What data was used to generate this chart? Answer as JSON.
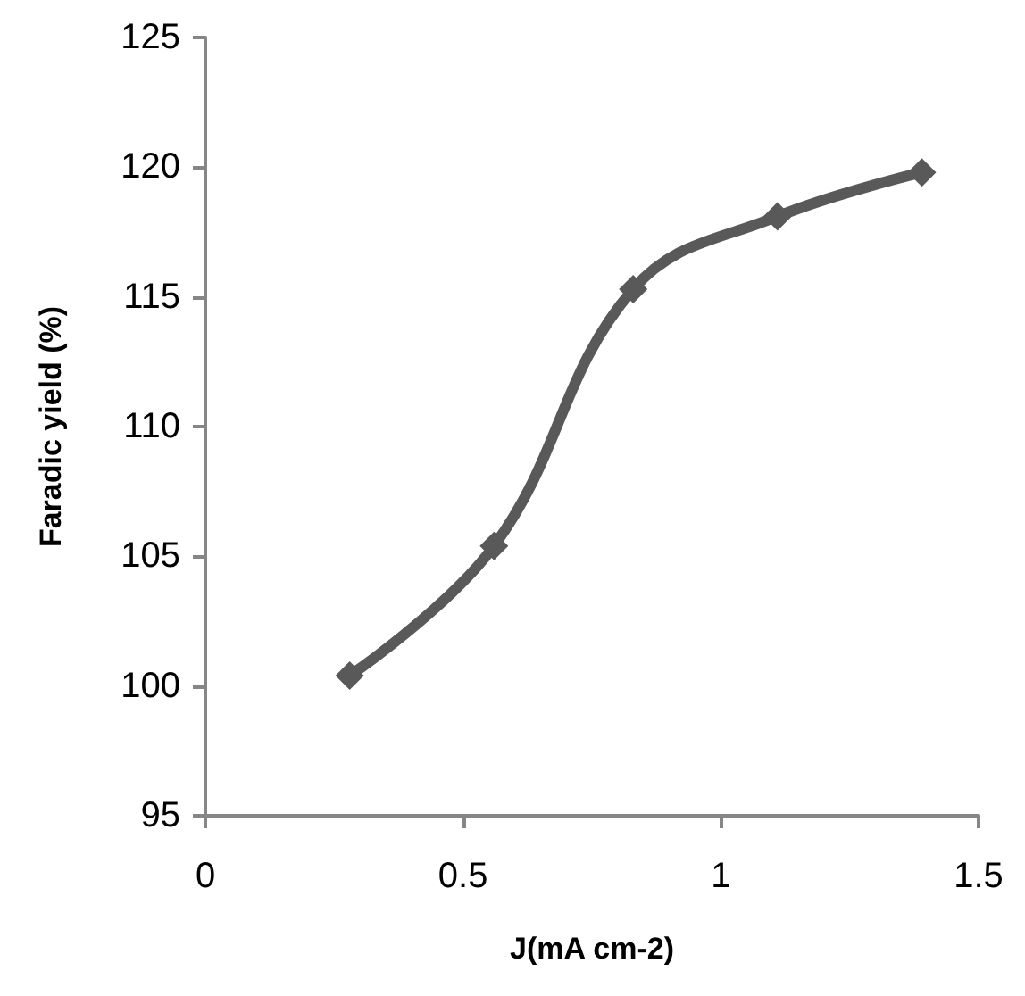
{
  "chart_data": {
    "type": "line",
    "xlabel": "J(mA cm-2)",
    "ylabel": "Faradic yield (%)",
    "x": [
      0.28,
      0.56,
      0.83,
      1.11,
      1.39
    ],
    "series": [
      {
        "color": "#595959",
        "values": [
          100.4,
          105.4,
          115.3,
          118.1,
          119.8
        ]
      }
    ],
    "xlim": [
      0,
      1.5
    ],
    "xticks": [
      0,
      0.5,
      1,
      1.5
    ],
    "ylim": [
      95,
      125
    ],
    "yticks": [
      95,
      100,
      105,
      110,
      115,
      120,
      125
    ],
    "marker": "diamond",
    "line_style": "solid"
  }
}
